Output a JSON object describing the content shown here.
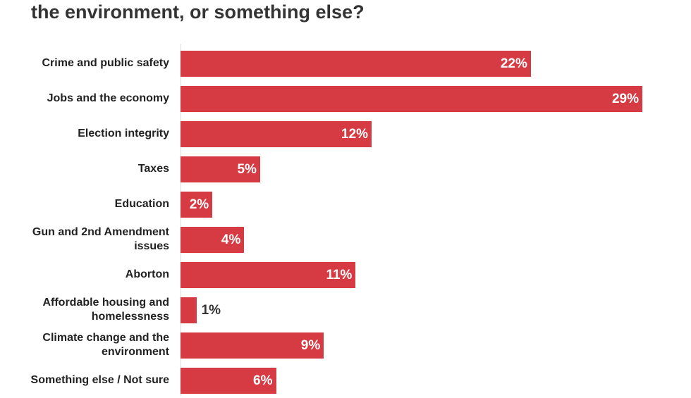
{
  "chart_data": {
    "type": "bar",
    "orientation": "horizontal",
    "title": "the environment, or something else?",
    "categories": [
      "Crime and public safety",
      "Jobs and the economy",
      "Election integrity",
      "Taxes",
      "Education",
      "Gun and 2nd Amendment issues",
      "Aborton",
      "Affordable housing and homelessness",
      "Climate change and the environment",
      "Something else / Not sure"
    ],
    "values": [
      22,
      29,
      12,
      5,
      2,
      4,
      11,
      1,
      9,
      6
    ],
    "value_labels": [
      "22%",
      "29%",
      "12%",
      "5%",
      "2%",
      "4%",
      "11%",
      "1%",
      "9%",
      "6%"
    ],
    "color": "#d63a43"
  }
}
